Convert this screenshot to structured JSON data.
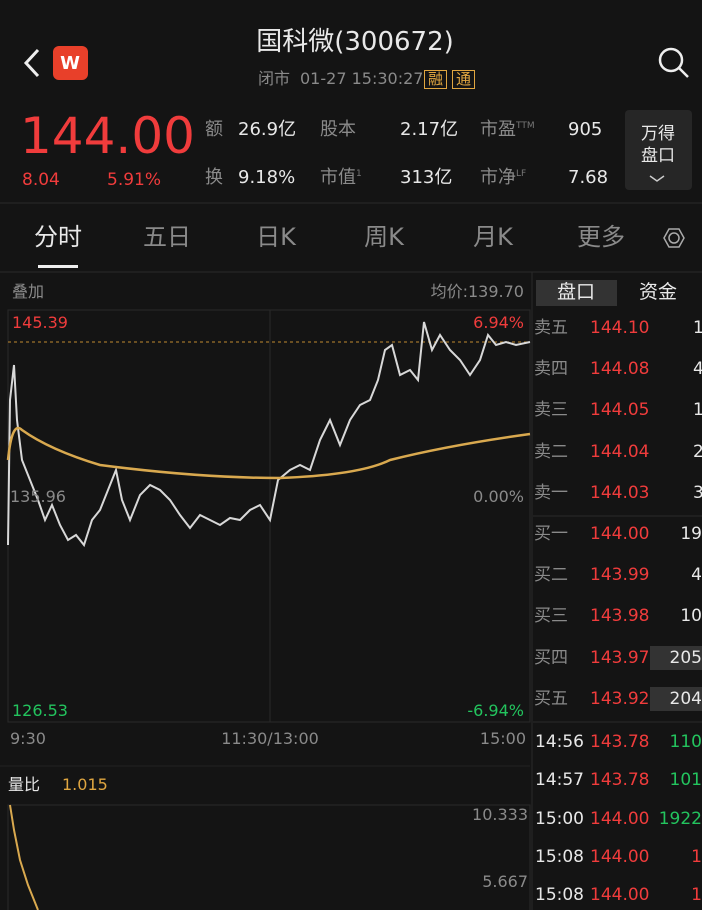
{
  "header": {
    "title": "国科微(300672)",
    "status": "闭市",
    "time": "01-27 15:30:27",
    "tags": [
      "融",
      "通"
    ]
  },
  "quote": {
    "price": "144.00",
    "change": "8.04",
    "change_pct": "5.91%",
    "stats": [
      {
        "label": "额",
        "value": "26.9亿"
      },
      {
        "label": "股本",
        "value": "2.17亿"
      },
      {
        "label": "市盈",
        "sup": "TTM",
        "value": "905"
      },
      {
        "label": "换",
        "value": "9.18%"
      },
      {
        "label": "市值",
        "sup": "1",
        "value": "313亿"
      },
      {
        "label": "市净",
        "sup": "LF",
        "value": "7.68"
      }
    ],
    "button": [
      "万得",
      "盘口"
    ]
  },
  "tabs": [
    "分时",
    "五日",
    "日K",
    "周K",
    "月K",
    "更多"
  ],
  "chart": {
    "overlay": "叠加",
    "avg_price": "均价:139.70",
    "high": "145.39",
    "high_pct": "6.94%",
    "mid": "135.96",
    "mid_pct": "0.00%",
    "low": "126.53",
    "low_pct": "-6.94%",
    "times": [
      "9:30",
      "11:30/13:00",
      "15:00"
    ]
  },
  "volume": {
    "label": "量比",
    "value": "1.015",
    "ticks": [
      "10.333",
      "5.667"
    ]
  },
  "book": {
    "tabs": [
      "盘口",
      "资金"
    ],
    "asks": [
      {
        "label": "卖五",
        "price": "144.10",
        "vol": "1"
      },
      {
        "label": "卖四",
        "price": "144.08",
        "vol": "4"
      },
      {
        "label": "卖三",
        "price": "144.05",
        "vol": "1"
      },
      {
        "label": "卖二",
        "price": "144.04",
        "vol": "2"
      },
      {
        "label": "卖一",
        "price": "144.03",
        "vol": "3"
      }
    ],
    "bids": [
      {
        "label": "买一",
        "price": "144.00",
        "vol": "19"
      },
      {
        "label": "买二",
        "price": "143.99",
        "vol": "4"
      },
      {
        "label": "买三",
        "price": "143.98",
        "vol": "10"
      },
      {
        "label": "买四",
        "price": "143.97",
        "vol": "205"
      },
      {
        "label": "买五",
        "price": "143.92",
        "vol": "204"
      }
    ],
    "trades": [
      {
        "time": "14:56",
        "price": "143.78",
        "vol": "110"
      },
      {
        "time": "14:57",
        "price": "143.78",
        "vol": "101"
      },
      {
        "time": "15:00",
        "price": "144.00",
        "vol": "1922"
      },
      {
        "time": "15:08",
        "price": "144.00",
        "vol": "1"
      },
      {
        "time": "15:08",
        "price": "144.00",
        "vol": "1"
      }
    ]
  }
}
